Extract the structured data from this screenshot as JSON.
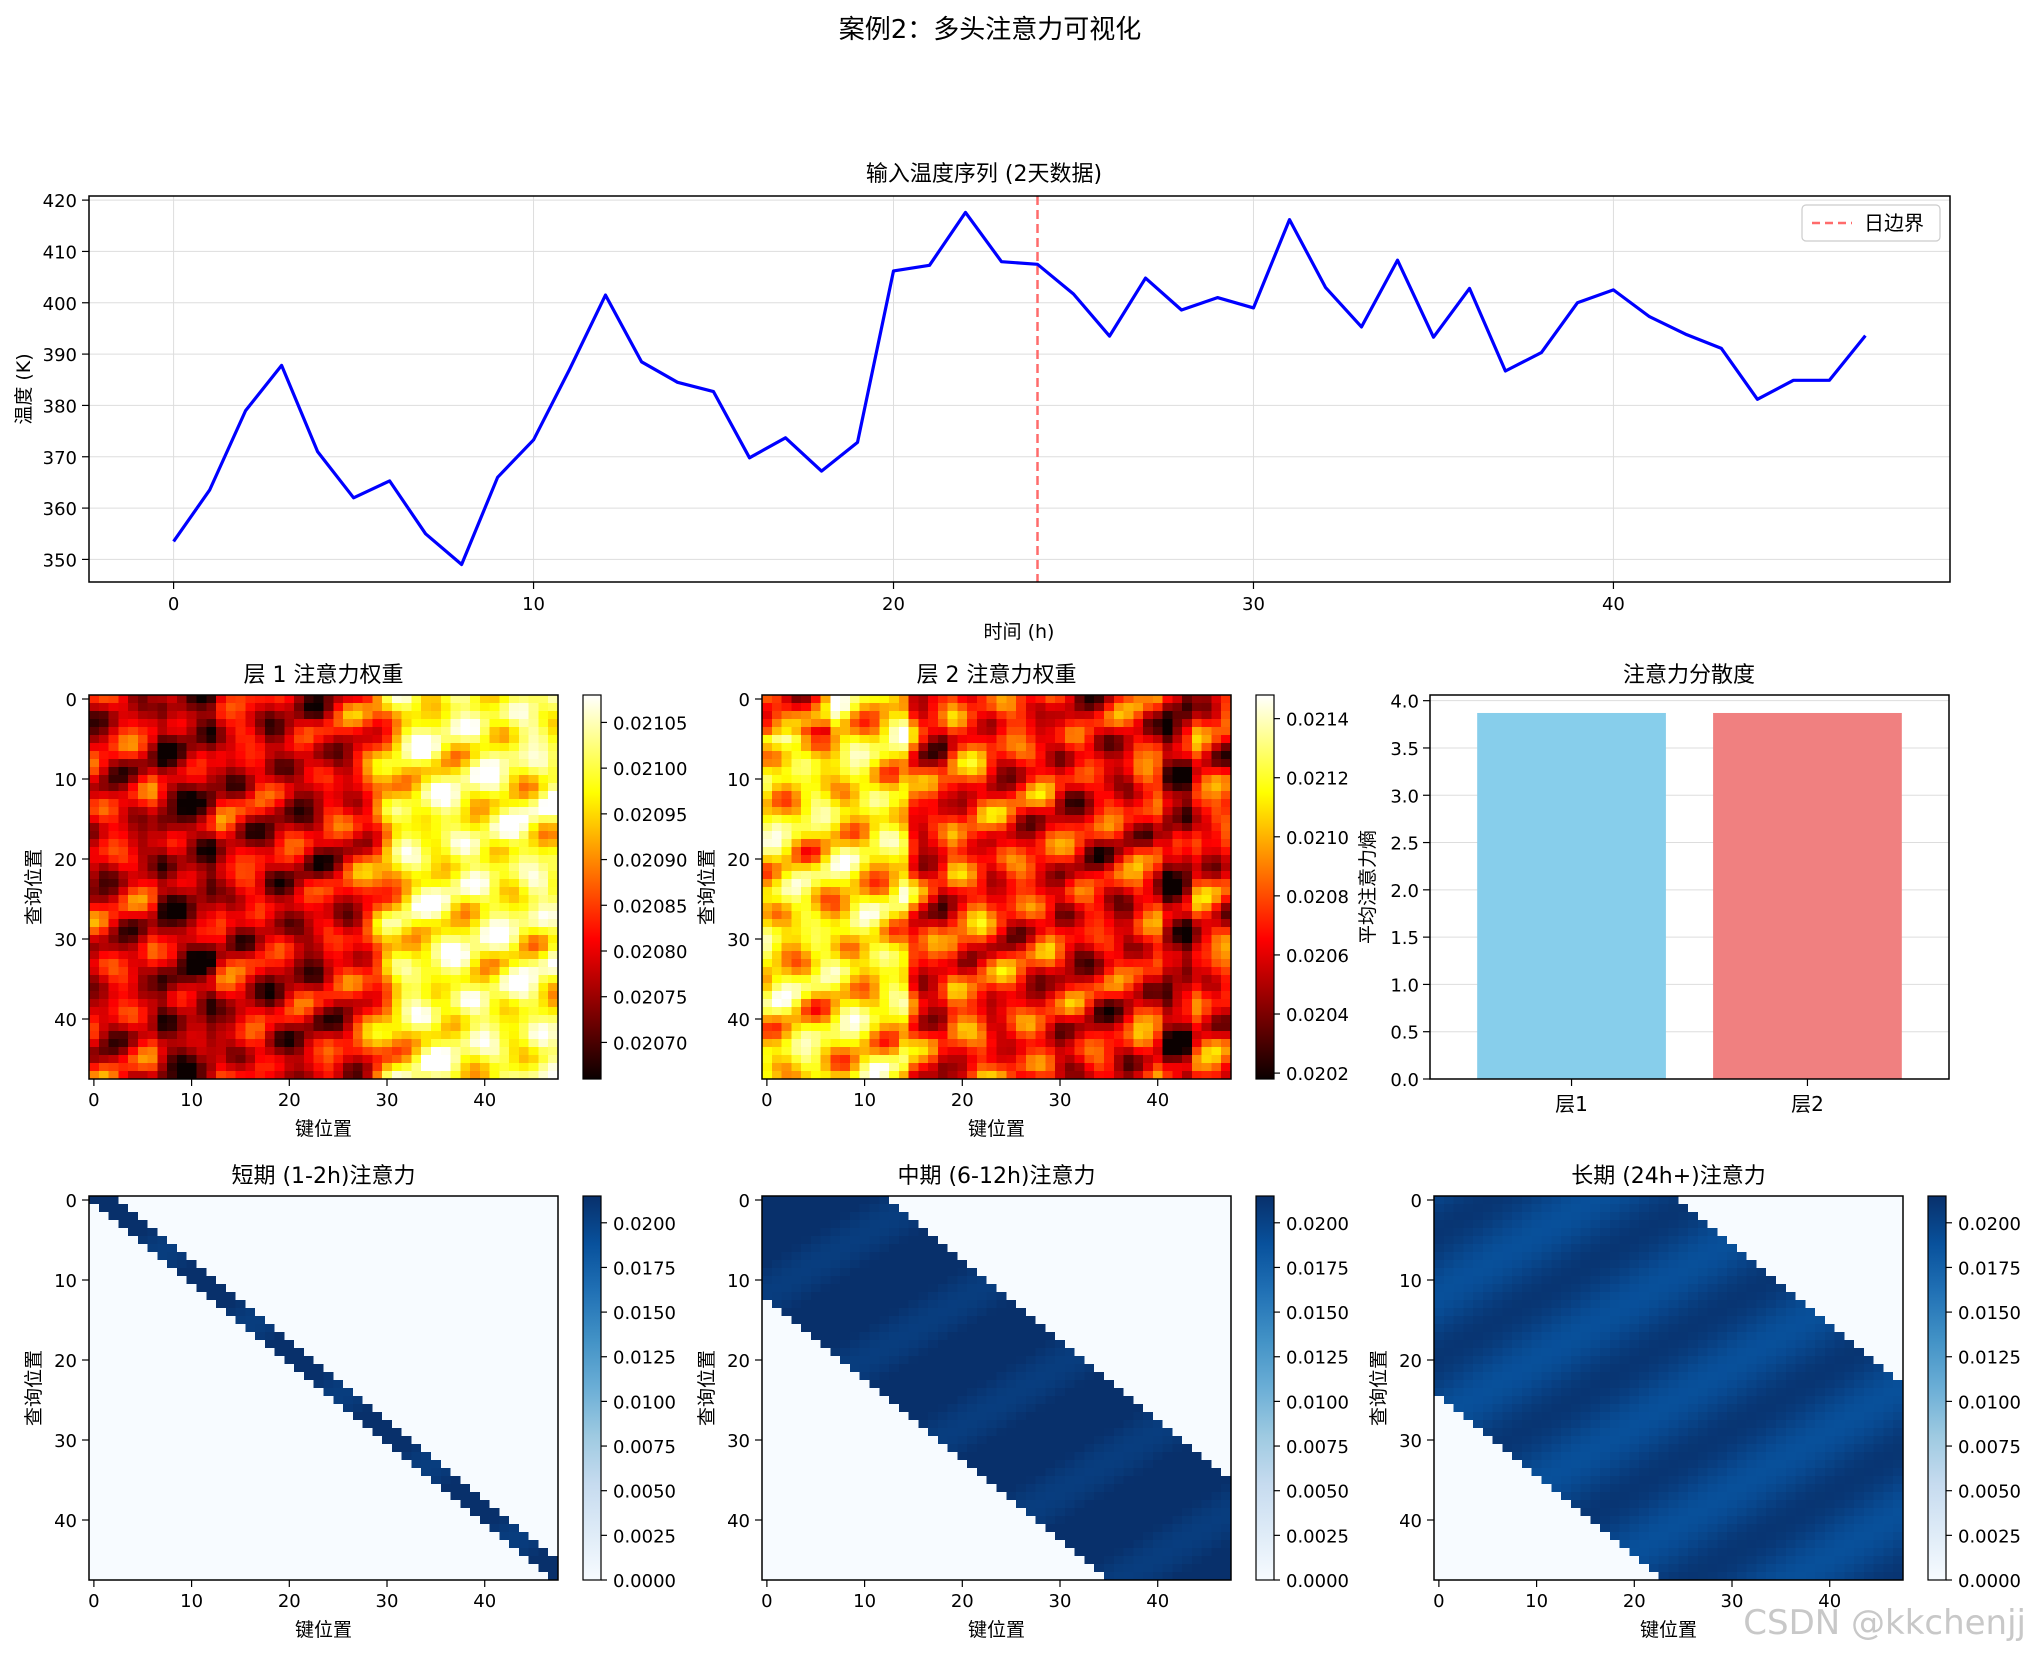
{
  "figure": {
    "suptitle": "案例2：多头注意力可视化",
    "watermark": "CSDN @kkchenjj"
  },
  "chart_data": [
    {
      "type": "line",
      "title": "输入温度序列 (2天数据)",
      "xlabel": "时间 (h)",
      "ylabel": "温度 (K)",
      "xlim": [
        -2.35,
        49.35
      ],
      "ylim": [
        345.6,
        420.8
      ],
      "xticks": [
        0,
        10,
        20,
        30,
        40
      ],
      "yticks": [
        350,
        360,
        370,
        380,
        390,
        400,
        410,
        420
      ],
      "grid": true,
      "legend": {
        "position": "top-right",
        "entries": [
          "日边界"
        ]
      },
      "series": [
        {
          "color": "#0000ff",
          "x": [
            0,
            1,
            2,
            3,
            4,
            5,
            6,
            7,
            8,
            9,
            10,
            11,
            12,
            13,
            14,
            15,
            16,
            17,
            18,
            19,
            20,
            21,
            22,
            23,
            24,
            25,
            26,
            27,
            28,
            29,
            30,
            31,
            32,
            33,
            34,
            35,
            36,
            37,
            38,
            39,
            40,
            41,
            42,
            43,
            44,
            45,
            46,
            47
          ],
          "y": [
            353.5,
            363.5,
            379,
            387.8,
            371,
            362,
            365.3,
            355,
            349,
            366,
            373.3,
            387,
            401.5,
            388.5,
            384.5,
            382.7,
            369.8,
            373.7,
            367.2,
            372.8,
            406.2,
            407.3,
            417.6,
            408,
            407.5,
            401.7,
            393.5,
            404.8,
            398.6,
            401,
            399,
            416.2,
            403,
            395.3,
            408.3,
            393.3,
            402.8,
            386.7,
            390.3,
            400,
            402.5,
            397.3,
            393.9,
            391.1,
            381.2,
            384.9,
            384.9,
            393.6
          ]
        }
      ],
      "annotations": [
        {
          "type": "vline",
          "x": 24,
          "color": "#ff6b6b",
          "style": "dashed",
          "label": "日边界"
        }
      ]
    },
    {
      "type": "heatmap",
      "title": "层 1 注意力权重",
      "xlabel": "键位置",
      "ylabel": "查询位置",
      "size": [
        48,
        48
      ],
      "colormap": "hot",
      "xticks": [
        0,
        10,
        20,
        30,
        40
      ],
      "yticks": [
        0,
        10,
        20,
        30,
        40
      ],
      "colorbar": {
        "vmin": 0.02066,
        "vmax": 0.02108,
        "ticks": [
          "0.02070",
          "0.02075",
          "0.02080",
          "0.02085",
          "0.02090",
          "0.02095",
          "0.02100",
          "0.02105"
        ]
      }
    },
    {
      "type": "heatmap",
      "title": "层 2 注意力权重",
      "xlabel": "键位置",
      "ylabel": "查询位置",
      "size": [
        48,
        48
      ],
      "colormap": "hot",
      "xticks": [
        0,
        10,
        20,
        30,
        40
      ],
      "yticks": [
        0,
        10,
        20,
        30,
        40
      ],
      "colorbar": {
        "vmin": 0.02018,
        "vmax": 0.02148,
        "ticks": [
          "0.0202",
          "0.0204",
          "0.0206",
          "0.0208",
          "0.0210",
          "0.0212",
          "0.0214"
        ]
      }
    },
    {
      "type": "bar",
      "title": "注意力分散度",
      "ylabel": "平均注意力熵",
      "categories": [
        "层1",
        "层2"
      ],
      "values": [
        3.87,
        3.87
      ],
      "colors": [
        "#87ceeb",
        "#f08080"
      ],
      "ylim": [
        0,
        4.06
      ],
      "yticks": [
        "0.0",
        "0.5",
        "1.0",
        "1.5",
        "2.0",
        "2.5",
        "3.0",
        "3.5",
        "4.0"
      ],
      "grid": true
    },
    {
      "type": "heatmap",
      "title": "短期 (1-2h)注意力",
      "xlabel": "键位置",
      "ylabel": "查询位置",
      "size": [
        48,
        48
      ],
      "colormap": "Blues",
      "band": {
        "lower": 0,
        "upper": 2
      },
      "xticks": [
        0,
        10,
        20,
        30,
        40
      ],
      "yticks": [
        0,
        10,
        20,
        30,
        40
      ],
      "colorbar": {
        "vmin": 0,
        "vmax": 0.0215,
        "ticks": [
          "0.0000",
          "0.0025",
          "0.0050",
          "0.0075",
          "0.0100",
          "0.0125",
          "0.0150",
          "0.0175",
          "0.0200"
        ]
      }
    },
    {
      "type": "heatmap",
      "title": "中期 (6-12h)注意力",
      "xlabel": "键位置",
      "ylabel": "查询位置",
      "size": [
        48,
        48
      ],
      "colormap": "Blues",
      "band": {
        "lower": 12,
        "upper": 12
      },
      "xticks": [
        0,
        10,
        20,
        30,
        40
      ],
      "yticks": [
        0,
        10,
        20,
        30,
        40
      ],
      "colorbar": {
        "vmin": 0,
        "vmax": 0.0215,
        "ticks": [
          "0.0000",
          "0.0025",
          "0.0050",
          "0.0075",
          "0.0100",
          "0.0125",
          "0.0150",
          "0.0175",
          "0.0200"
        ]
      }
    },
    {
      "type": "heatmap",
      "title": "长期 (24h+)注意力",
      "xlabel": "键位置",
      "ylabel": "查询位置",
      "size": [
        48,
        48
      ],
      "colormap": "Blues",
      "band": {
        "lower": 24,
        "upper": 24
      },
      "xticks": [
        0,
        10,
        20,
        30,
        40
      ],
      "yticks": [
        0,
        10,
        20,
        30,
        40
      ],
      "colorbar": {
        "vmin": 0,
        "vmax": 0.0215,
        "ticks": [
          "0.0000",
          "0.0025",
          "0.0050",
          "0.0075",
          "0.0100",
          "0.0125",
          "0.0150",
          "0.0175",
          "0.0200"
        ]
      }
    }
  ]
}
